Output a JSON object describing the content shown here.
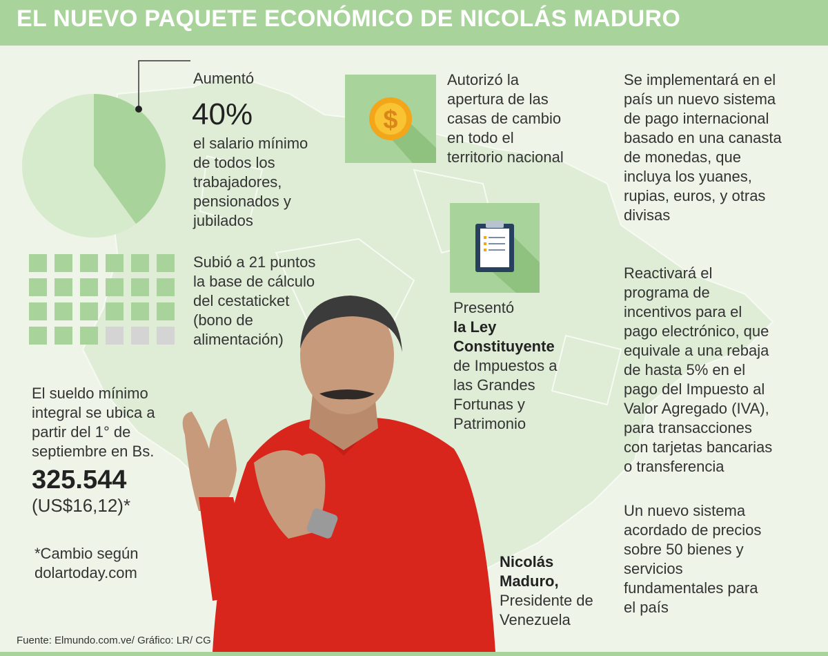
{
  "title": "EL NUEVO PAQUETE ECONÓMICO DE NICOLÁS MADURO",
  "colors": {
    "accent": "#a8d39a",
    "light": "#d6eacc",
    "gray": "#d4d4d4",
    "background": "#eef4e8"
  },
  "salary": {
    "line1": "Aumentó",
    "percent": "40%",
    "desc": [
      "el salario mínimo",
      "de todos los",
      "trabajadores,",
      "pensionados y",
      "jubilados"
    ],
    "pie_fraction": 0.4
  },
  "cestaticket": {
    "lines": [
      "Subió a 21 puntos",
      "la base de cálculo",
      "del cestaticket",
      "(bono de",
      "alimentación)"
    ],
    "filled": 21,
    "total": 24,
    "icon": "square-grid-icon"
  },
  "minimum_wage": {
    "lines": [
      "El sueldo mínimo",
      "integral se ubica a",
      "partir del 1° de",
      "septiembre en Bs."
    ],
    "amount": "325.544",
    "usd": "(US$16,12)*",
    "note": [
      "*Cambio según",
      "dolartoday.com"
    ]
  },
  "exchange": {
    "lines": [
      "Autorizó la",
      "apertura de las",
      "casas de cambio",
      "en todo el",
      "territorio nacional"
    ],
    "icon": "dollar-coin-icon"
  },
  "law": {
    "line1": "Presentó",
    "bold": [
      "la Ley",
      "Constituyente"
    ],
    "lines": [
      "de Impuestos a",
      "las Grandes",
      "Fortunas y",
      "Patrimonio"
    ],
    "icon": "clipboard-icon"
  },
  "payment_system": {
    "lines": [
      "Se implementará en el",
      "país un nuevo sistema",
      "de pago internacional",
      "basado en una canasta",
      "de monedas, que",
      "incluya los yuanes,",
      "rupias, euros, y otras",
      "divisas"
    ]
  },
  "incentives": {
    "lines": [
      "Reactivará el",
      "programa de",
      "incentivos para el",
      "pago electrónico, que",
      "equivale a una rebaja",
      "de hasta 5% en el",
      "pago del Impuesto al",
      "Valor Agregado (IVA),",
      "para transacciones",
      "con tarjetas bancarias",
      "o transferencia"
    ]
  },
  "prices": {
    "lines": [
      "Un nuevo sistema",
      "acordado de precios",
      "sobre 50 bienes y",
      "servicios",
      "fundamentales para",
      "el país"
    ]
  },
  "person": {
    "name": [
      "Nicolás",
      "Maduro,"
    ],
    "role": [
      "Presidente de",
      "Venezuela"
    ]
  },
  "source": "Fuente: Elmundo.com.ve/ Gráfico: LR/ CG"
}
